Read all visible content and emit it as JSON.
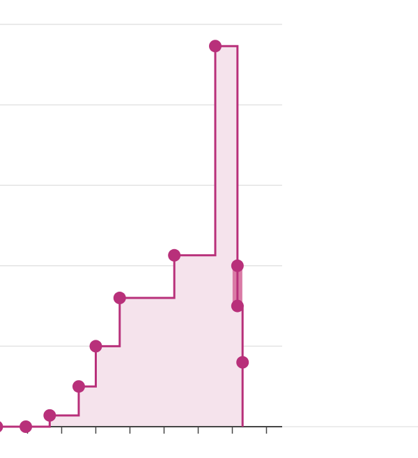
{
  "chart_data": {
    "type": "area",
    "style": "step-after",
    "title": "",
    "xlabel": "",
    "ylabel": "",
    "grid": true,
    "ylim": [
      0,
      5
    ],
    "xlim": [
      0,
      8
    ],
    "x_ticks": [
      0.5,
      1.5,
      2.5,
      3.5,
      4.5,
      5.5,
      6.5,
      7.5
    ],
    "y_gridlines": [
      1,
      2,
      3,
      4,
      5
    ],
    "series": [
      {
        "points": [
          {
            "x": -0.4,
            "y": 0
          },
          {
            "x": 0.45,
            "y": 0
          },
          {
            "x": 1.15,
            "y": 0.14
          },
          {
            "x": 2.0,
            "y": 0.5
          },
          {
            "x": 2.5,
            "y": 1.0
          },
          {
            "x": 3.2,
            "y": 1.6
          },
          {
            "x": 4.8,
            "y": 2.13
          },
          {
            "x": 6.0,
            "y": 4.73
          },
          {
            "x": 6.65,
            "y": 2.0
          },
          {
            "x": 6.65,
            "y": 1.5
          },
          {
            "x": 6.8,
            "y": 0.8
          }
        ]
      }
    ],
    "highlight_band": {
      "x": 6.65,
      "from": 2.0,
      "to": 1.5
    },
    "colors": {
      "line": "#b8307a",
      "fill": "#f5e3ec",
      "highlight": "#d97aa5",
      "grid": "#e3e3e3",
      "axis": "#444444"
    }
  }
}
